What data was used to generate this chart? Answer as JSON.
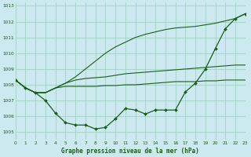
{
  "title": "Graphe pression niveau de la mer (hPa)",
  "bg_color": "#cde9f0",
  "grid_color": "#99ccbb",
  "line_color": "#1a5c1a",
  "xlim": [
    0,
    23
  ],
  "ylim": [
    1004.5,
    1013.2
  ],
  "yticks": [
    1005,
    1006,
    1007,
    1008,
    1009,
    1010,
    1011,
    1012,
    1013
  ],
  "xticks": [
    0,
    1,
    2,
    3,
    4,
    5,
    6,
    7,
    8,
    9,
    10,
    11,
    12,
    13,
    14,
    15,
    16,
    17,
    18,
    19,
    20,
    21,
    22,
    23
  ],
  "series_marker": [
    1008.3,
    1007.8,
    1007.5,
    1007.0,
    1006.2,
    1005.6,
    1005.45,
    1005.45,
    1005.2,
    1005.3,
    1005.85,
    1006.5,
    1006.4,
    1006.15,
    1006.4,
    1006.4,
    1006.4,
    1007.55,
    1008.1,
    1009.0,
    1010.3,
    1011.55,
    1012.2,
    1012.5
  ],
  "series_flat": [
    1008.3,
    1007.8,
    1007.5,
    1007.5,
    1007.8,
    1007.9,
    1007.9,
    1007.9,
    1007.9,
    1007.95,
    1007.95,
    1008.0,
    1008.0,
    1008.05,
    1008.1,
    1008.15,
    1008.2,
    1008.2,
    1008.2,
    1008.25,
    1008.25,
    1008.3,
    1008.3,
    1008.3
  ],
  "series_mid": [
    1008.3,
    1007.8,
    1007.5,
    1007.5,
    1007.8,
    1008.1,
    1008.3,
    1008.4,
    1008.45,
    1008.5,
    1008.6,
    1008.7,
    1008.75,
    1008.8,
    1008.85,
    1008.9,
    1008.95,
    1009.0,
    1009.05,
    1009.1,
    1009.15,
    1009.2,
    1009.25,
    1009.25
  ],
  "series_steep": [
    1008.3,
    1007.8,
    1007.5,
    1007.5,
    1007.8,
    1008.1,
    1008.5,
    1009.0,
    1009.5,
    1010.0,
    1010.4,
    1010.7,
    1011.0,
    1011.2,
    1011.35,
    1011.5,
    1011.6,
    1011.65,
    1011.7,
    1011.8,
    1011.9,
    1012.05,
    1012.2,
    1012.5
  ]
}
